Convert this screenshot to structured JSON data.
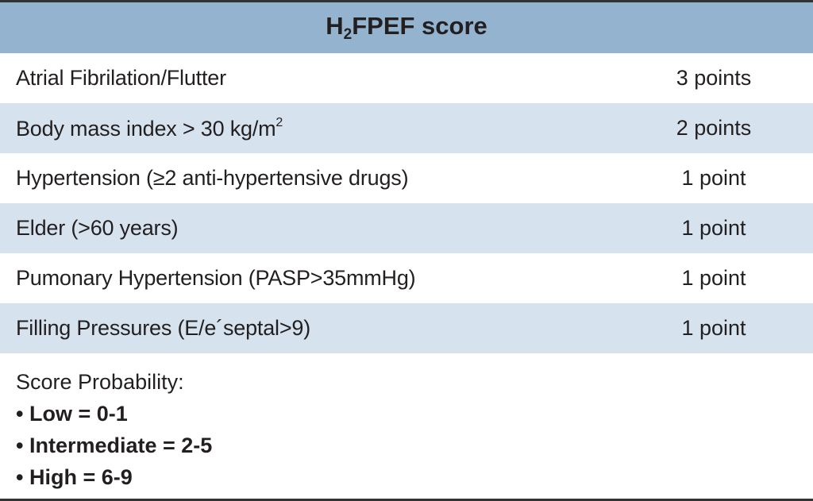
{
  "table": {
    "title": [
      "H",
      "2",
      "FPEF score"
    ],
    "rows": [
      [
        "Atrial Fibrilation/Flutter",
        "3 points"
      ],
      [
        [
          "Body mass index > 30 kg/m",
          "2"
        ],
        "2 points"
      ],
      [
        "Hypertension (≥2 anti-hypertensive drugs)",
        "1 point"
      ],
      [
        "Elder (>60 years)",
        "1 point"
      ],
      [
        "Pumonary Hypertension (PASP>35mmHg)",
        "1 point"
      ],
      [
        "Filling Pressures (E/e´septal>9)",
        "1 point"
      ]
    ],
    "footer": {
      "heading": "Score Probability:",
      "items": [
        "Low = 0-1",
        "Intermediate = 2-5",
        "High = 6-9"
      ]
    }
  }
}
